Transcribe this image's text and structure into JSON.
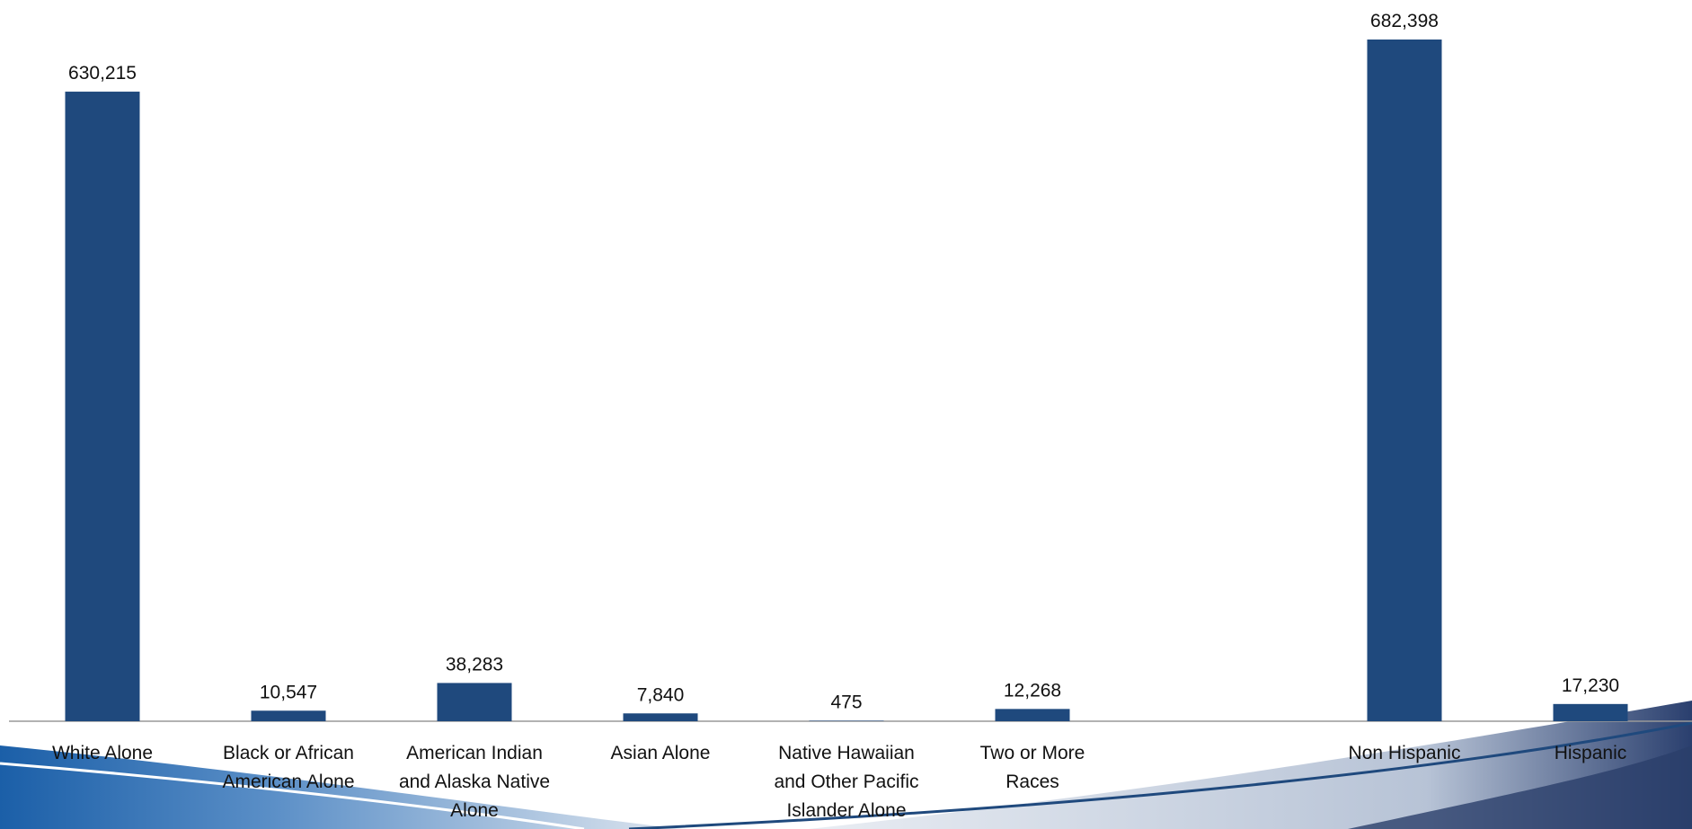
{
  "chart_data": {
    "type": "bar",
    "categories": [
      "White Alone",
      "Black or African American Alone",
      "American Indian and Alaska Native Alone",
      "Asian Alone",
      "Native Hawaiian and Other Pacific Islander Alone",
      "Two or More Races",
      null,
      "Non Hispanic",
      "Hispanic"
    ],
    "values": [
      630215,
      10547,
      38283,
      7840,
      475,
      12268,
      null,
      682398,
      17230
    ],
    "value_labels": [
      "630,215",
      "10,547",
      "38,283",
      "7,840",
      "475",
      "12,268",
      null,
      "682,398",
      "17,230"
    ],
    "color": "#1f497d"
  }
}
